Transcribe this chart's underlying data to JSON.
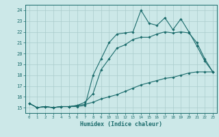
{
  "xlabel": "Humidex (Indice chaleur)",
  "xlim": [
    -0.5,
    23.5
  ],
  "ylim": [
    14.5,
    24.5
  ],
  "yticks": [
    15,
    16,
    17,
    18,
    19,
    20,
    21,
    22,
    23,
    24
  ],
  "xticks": [
    0,
    1,
    2,
    3,
    4,
    5,
    6,
    7,
    8,
    9,
    10,
    11,
    12,
    13,
    14,
    15,
    16,
    17,
    18,
    19,
    20,
    21,
    22,
    23
  ],
  "bg_color": "#cce8e8",
  "grid_color": "#aacccc",
  "line_color": "#1a6b6b",
  "line1_x": [
    0,
    1,
    2,
    3,
    4,
    5,
    6,
    7,
    8,
    9,
    10,
    11,
    12,
    13,
    14,
    15,
    16,
    17,
    18,
    19,
    20,
    21,
    22,
    23
  ],
  "line1_y": [
    15.4,
    15.0,
    15.1,
    15.0,
    15.1,
    15.1,
    15.1,
    15.2,
    18.0,
    19.5,
    21.0,
    21.8,
    21.9,
    22.0,
    24.0,
    22.8,
    22.6,
    23.3,
    22.2,
    23.2,
    22.0,
    20.7,
    19.3,
    18.3
  ],
  "line2_x": [
    0,
    1,
    2,
    3,
    4,
    5,
    6,
    7,
    8,
    9,
    10,
    11,
    12,
    13,
    14,
    15,
    16,
    17,
    18,
    19,
    20,
    21,
    22,
    23
  ],
  "line2_y": [
    15.4,
    15.0,
    15.1,
    15.0,
    15.1,
    15.1,
    15.2,
    15.5,
    16.3,
    18.5,
    19.5,
    20.5,
    20.8,
    21.3,
    21.5,
    21.5,
    21.8,
    22.0,
    21.9,
    22.0,
    21.9,
    21.0,
    19.5,
    18.3
  ],
  "line3_x": [
    0,
    1,
    2,
    3,
    4,
    5,
    6,
    7,
    8,
    9,
    10,
    11,
    12,
    13,
    14,
    15,
    16,
    17,
    18,
    19,
    20,
    21,
    22,
    23
  ],
  "line3_y": [
    15.4,
    15.0,
    15.1,
    15.0,
    15.1,
    15.1,
    15.2,
    15.3,
    15.5,
    15.8,
    16.0,
    16.2,
    16.5,
    16.8,
    17.1,
    17.3,
    17.5,
    17.7,
    17.8,
    18.0,
    18.2,
    18.3,
    18.3,
    18.3
  ]
}
